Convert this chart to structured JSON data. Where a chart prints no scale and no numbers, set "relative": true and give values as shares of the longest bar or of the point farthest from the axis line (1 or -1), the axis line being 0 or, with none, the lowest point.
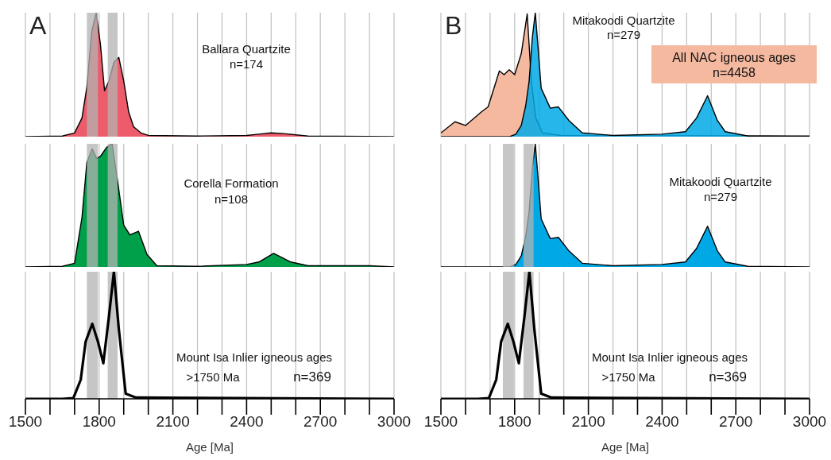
{
  "chart_data": [
    {
      "type": "area",
      "title": "A",
      "relative": true,
      "xlim": [
        1500,
        3000
      ],
      "xticks": [
        1500,
        {
          "value": 1600,
          "label": null
        },
        {
          "value": 1700,
          "label": null
        },
        1800,
        {
          "value": 1900,
          "label": null
        },
        {
          "value": 2000,
          "label": null
        },
        2100,
        {
          "value": 2200,
          "label": null
        },
        {
          "value": 2300,
          "label": null
        },
        2400,
        {
          "value": 2500,
          "label": null
        },
        {
          "value": 2600,
          "label": null
        },
        2700,
        {
          "value": 2800,
          "label": null
        },
        {
          "value": 2900,
          "label": null
        },
        3000
      ],
      "tick_labels": false,
      "grid": "x",
      "x": [
        1500,
        1650,
        1700,
        1730,
        1750,
        1770,
        1788,
        1805,
        1822,
        1840,
        1860,
        1880,
        1900,
        1920,
        1940,
        1970,
        2000,
        2200,
        2400,
        2450,
        2500,
        2550,
        2650,
        3000
      ],
      "series": [
        {
          "color": "#ee5b6a",
          "values": [
            0,
            0.005,
            0.03,
            0.15,
            0.4,
            0.85,
            1,
            0.75,
            0.37,
            0.45,
            0.6,
            0.64,
            0.45,
            0.2,
            0.08,
            0.03,
            0.01,
            0.005,
            0.01,
            0.02,
            0.03,
            0.025,
            0.005,
            0
          ]
        }
      ],
      "bands": [
        {
          "axis": "x",
          "from": 1750,
          "to": 1795,
          "color": "#b3b3b3"
        },
        {
          "axis": "x",
          "from": 1835,
          "to": 1875,
          "color": "#b3b3b3"
        }
      ],
      "annotations": [
        "Ballara Quartzite",
        "n=174"
      ]
    },
    {
      "type": "area",
      "relative": true,
      "xlim": [
        1500,
        3000
      ],
      "xticks": [
        1500,
        {
          "value": 1600,
          "label": null
        },
        {
          "value": 1700,
          "label": null
        },
        1800,
        {
          "value": 1900,
          "label": null
        },
        {
          "value": 2000,
          "label": null
        },
        2100,
        {
          "value": 2200,
          "label": null
        },
        {
          "value": 2300,
          "label": null
        },
        2400,
        {
          "value": 2500,
          "label": null
        },
        {
          "value": 2600,
          "label": null
        },
        2700,
        {
          "value": 2800,
          "label": null
        },
        {
          "value": 2900,
          "label": null
        },
        3000
      ],
      "tick_labels": false,
      "grid": "x",
      "x": [
        1500,
        1650,
        1700,
        1730,
        1750,
        1772,
        1790,
        1806,
        1830,
        1853,
        1875,
        1900,
        1925,
        1960,
        1995,
        2035,
        2200,
        2400,
        2450,
        2510,
        2580,
        2650,
        2900,
        3000
      ],
      "series": [
        {
          "color": "#00a04a",
          "values": [
            0,
            0.005,
            0.03,
            0.4,
            0.85,
            0.96,
            0.88,
            0.9,
            0.97,
            1,
            0.7,
            0.34,
            0.26,
            0.29,
            0.1,
            0.01,
            0.005,
            0.02,
            0.04,
            0.11,
            0.04,
            0.01,
            0.01,
            0
          ]
        }
      ],
      "bands": [
        {
          "axis": "x",
          "from": 1750,
          "to": 1795,
          "color": "#b3b3b3"
        },
        {
          "axis": "x",
          "from": 1835,
          "to": 1875,
          "color": "#b3b3b3"
        }
      ],
      "annotations": [
        "Corella Formation",
        "n=108"
      ]
    },
    {
      "type": "line",
      "relative": true,
      "xlabel": "Age [Ma]",
      "xlim": [
        1500,
        3000
      ],
      "xticks": [
        1500,
        {
          "value": 1600,
          "label": null
        },
        {
          "value": 1700,
          "label": null
        },
        1800,
        {
          "value": 1900,
          "label": null
        },
        {
          "value": 2000,
          "label": null
        },
        2100,
        {
          "value": 2200,
          "label": null
        },
        {
          "value": 2300,
          "label": null
        },
        2400,
        {
          "value": 2500,
          "label": null
        },
        {
          "value": 2600,
          "label": null
        },
        2700,
        {
          "value": 2800,
          "label": null
        },
        {
          "value": 2900,
          "label": null
        },
        3000
      ],
      "tick_labels": "x",
      "grid": "x",
      "x": [
        1500,
        1650,
        1695,
        1725,
        1745,
        1772,
        1795,
        1817,
        1840,
        1860,
        1880,
        1908,
        1950,
        3000
      ],
      "series": [
        {
          "color": "#000000",
          "values": [
            0,
            0,
            0.005,
            0.15,
            0.45,
            0.59,
            0.45,
            0.28,
            0.65,
            1,
            0.55,
            0.04,
            0.01,
            0
          ]
        }
      ],
      "bands": [
        {
          "axis": "x",
          "from": 1750,
          "to": 1795,
          "color": "#b3b3b3"
        },
        {
          "axis": "x",
          "from": 1835,
          "to": 1875,
          "color": "#b3b3b3"
        }
      ],
      "annotations": [
        "Mount Isa Inlier igneous ages",
        ">1750 Ma",
        "n=369"
      ]
    },
    {
      "type": "area",
      "title": "B",
      "relative": true,
      "xlim": [
        1500,
        3000
      ],
      "xticks": [
        1500,
        {
          "value": 1600,
          "label": null
        },
        {
          "value": 1700,
          "label": null
        },
        1800,
        {
          "value": 1900,
          "label": null
        },
        {
          "value": 2000,
          "label": null
        },
        2100,
        {
          "value": 2200,
          "label": null
        },
        {
          "value": 2300,
          "label": null
        },
        2400,
        {
          "value": 2500,
          "label": null
        },
        {
          "value": 2600,
          "label": null
        },
        2700,
        {
          "value": 2800,
          "label": null
        },
        {
          "value": 2900,
          "label": null
        },
        3000
      ],
      "tick_labels": false,
      "grid": "x",
      "series": [
        {
          "color": "#f5b9a0",
          "x": [
            1500,
            1557,
            1600,
            1665,
            1692,
            1738,
            1757,
            1778,
            1800,
            1827,
            1851,
            1868,
            1886,
            1913,
            1989,
            3000
          ],
          "values": [
            0.03,
            0.12,
            0.09,
            0.2,
            0.24,
            0.53,
            0.5,
            0.54,
            0.5,
            0.67,
            0.99,
            0.45,
            0.15,
            0.03,
            0.01,
            0.005
          ]
        },
        {
          "color": "#00a9e6",
          "x": [
            1500,
            1780,
            1805,
            1827,
            1845,
            1859,
            1872,
            1884,
            1896,
            1908,
            1945,
            1978,
            2021,
            2075,
            2200,
            2400,
            2495,
            2540,
            2585,
            2625,
            2657,
            2750,
            3000
          ],
          "values": [
            0,
            0,
            0.02,
            0.09,
            0.25,
            0.45,
            0.8,
            1,
            0.7,
            0.39,
            0.23,
            0.24,
            0.13,
            0.03,
            0.01,
            0.02,
            0.04,
            0.15,
            0.33,
            0.13,
            0.04,
            0.005,
            0
          ]
        }
      ],
      "annotations": [
        "Mitakoodi Quartzite",
        "n=279",
        "All NAC igneous ages",
        "n=4458"
      ]
    },
    {
      "type": "area",
      "relative": true,
      "xlim": [
        1500,
        3000
      ],
      "xticks": [
        1500,
        {
          "value": 1600,
          "label": null
        },
        {
          "value": 1700,
          "label": null
        },
        1800,
        {
          "value": 1900,
          "label": null
        },
        {
          "value": 2000,
          "label": null
        },
        2100,
        {
          "value": 2200,
          "label": null
        },
        {
          "value": 2300,
          "label": null
        },
        2400,
        {
          "value": 2500,
          "label": null
        },
        {
          "value": 2600,
          "label": null
        },
        2700,
        {
          "value": 2800,
          "label": null
        },
        {
          "value": 2900,
          "label": null
        },
        3000
      ],
      "tick_labels": false,
      "grid": "x",
      "x": [
        1500,
        1780,
        1805,
        1827,
        1845,
        1859,
        1872,
        1884,
        1896,
        1908,
        1945,
        1978,
        2021,
        2075,
        2200,
        2400,
        2495,
        2540,
        2585,
        2625,
        2657,
        2750,
        3000
      ],
      "series": [
        {
          "color": "#00a9e6",
          "values": [
            0,
            0,
            0.02,
            0.09,
            0.25,
            0.45,
            0.8,
            1,
            0.7,
            0.39,
            0.23,
            0.24,
            0.13,
            0.03,
            0.01,
            0.02,
            0.04,
            0.15,
            0.33,
            0.13,
            0.04,
            0.005,
            0
          ]
        }
      ],
      "bands": [
        {
          "axis": "x",
          "from": 1752,
          "to": 1797,
          "color": "#b3b3b3"
        },
        {
          "axis": "x",
          "from": 1836,
          "to": 1877,
          "color": "#b3b3b3"
        }
      ],
      "annotations": [
        "Mitakoodi Quartzite",
        "n=279"
      ]
    },
    {
      "type": "line",
      "relative": true,
      "xlabel": "Age [Ma]",
      "xlim": [
        1500,
        3000
      ],
      "xticks": [
        1500,
        {
          "value": 1600,
          "label": null
        },
        {
          "value": 1700,
          "label": null
        },
        1800,
        {
          "value": 1900,
          "label": null
        },
        {
          "value": 2000,
          "label": null
        },
        2100,
        {
          "value": 2200,
          "label": null
        },
        {
          "value": 2300,
          "label": null
        },
        2400,
        {
          "value": 2500,
          "label": null
        },
        {
          "value": 2600,
          "label": null
        },
        2700,
        {
          "value": 2800,
          "label": null
        },
        {
          "value": 2900,
          "label": null
        },
        3000
      ],
      "tick_labels": "x",
      "grid": "x",
      "x": [
        1500,
        1650,
        1695,
        1725,
        1745,
        1772,
        1795,
        1817,
        1840,
        1860,
        1880,
        1908,
        1950,
        3000
      ],
      "series": [
        {
          "color": "#000000",
          "values": [
            0,
            0,
            0.005,
            0.15,
            0.45,
            0.59,
            0.45,
            0.28,
            0.65,
            1,
            0.55,
            0.04,
            0.01,
            0
          ]
        }
      ],
      "bands": [
        {
          "axis": "x",
          "from": 1752,
          "to": 1797,
          "color": "#b3b3b3"
        },
        {
          "axis": "x",
          "from": 1836,
          "to": 1877,
          "color": "#b3b3b3"
        }
      ],
      "annotations": [
        "Mount Isa Inlier igneous ages",
        ">1750 Ma",
        "n=369"
      ]
    }
  ]
}
